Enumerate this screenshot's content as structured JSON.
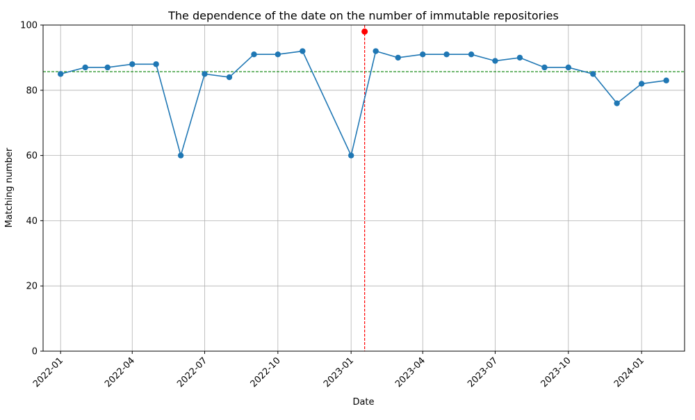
{
  "chart_data": {
    "type": "line",
    "title": "The dependence of the date on the number of immutable repositories",
    "xlabel": "Date",
    "ylabel": "Matching number",
    "ylim": [
      0,
      100
    ],
    "xlim": [
      "2021-12-10",
      "2024-02-24"
    ],
    "grid": true,
    "x_ticks": [
      "2022-01",
      "2022-04",
      "2022-07",
      "2022-10",
      "2023-01",
      "2023-04",
      "2023-07",
      "2023-10",
      "2024-01"
    ],
    "y_ticks": [
      0,
      20,
      40,
      60,
      80,
      100
    ],
    "series": [
      {
        "color": "#1f77b4",
        "marker": "circle",
        "x": [
          "2022-01-01",
          "2022-02-01",
          "2022-03-01",
          "2022-04-01",
          "2022-05-01",
          "2022-06-01",
          "2022-07-01",
          "2022-08-01",
          "2022-09-01",
          "2022-10-01",
          "2022-11-01",
          "2023-01-01",
          "2023-02-01",
          "2023-03-01",
          "2023-04-01",
          "2023-05-01",
          "2023-06-01",
          "2023-07-01",
          "2023-08-01",
          "2023-09-01",
          "2023-10-01",
          "2023-11-01",
          "2023-12-01",
          "2024-01-01",
          "2024-02-01"
        ],
        "values": [
          85,
          87,
          87,
          88,
          88,
          60,
          85,
          84,
          91,
          91,
          92,
          60,
          92,
          90,
          91,
          91,
          91,
          89,
          90,
          87,
          87,
          85,
          76,
          82,
          83
        ]
      }
    ],
    "highlight_point": {
      "x": "2023-01-18",
      "y": 98,
      "color": "#ff0000"
    },
    "vertical_line": {
      "x": "2023-01-18",
      "color": "#ff0000",
      "style": "dashed"
    },
    "horizontal_line": {
      "y": 85.7,
      "color": "#008000",
      "style": "dashed"
    }
  }
}
